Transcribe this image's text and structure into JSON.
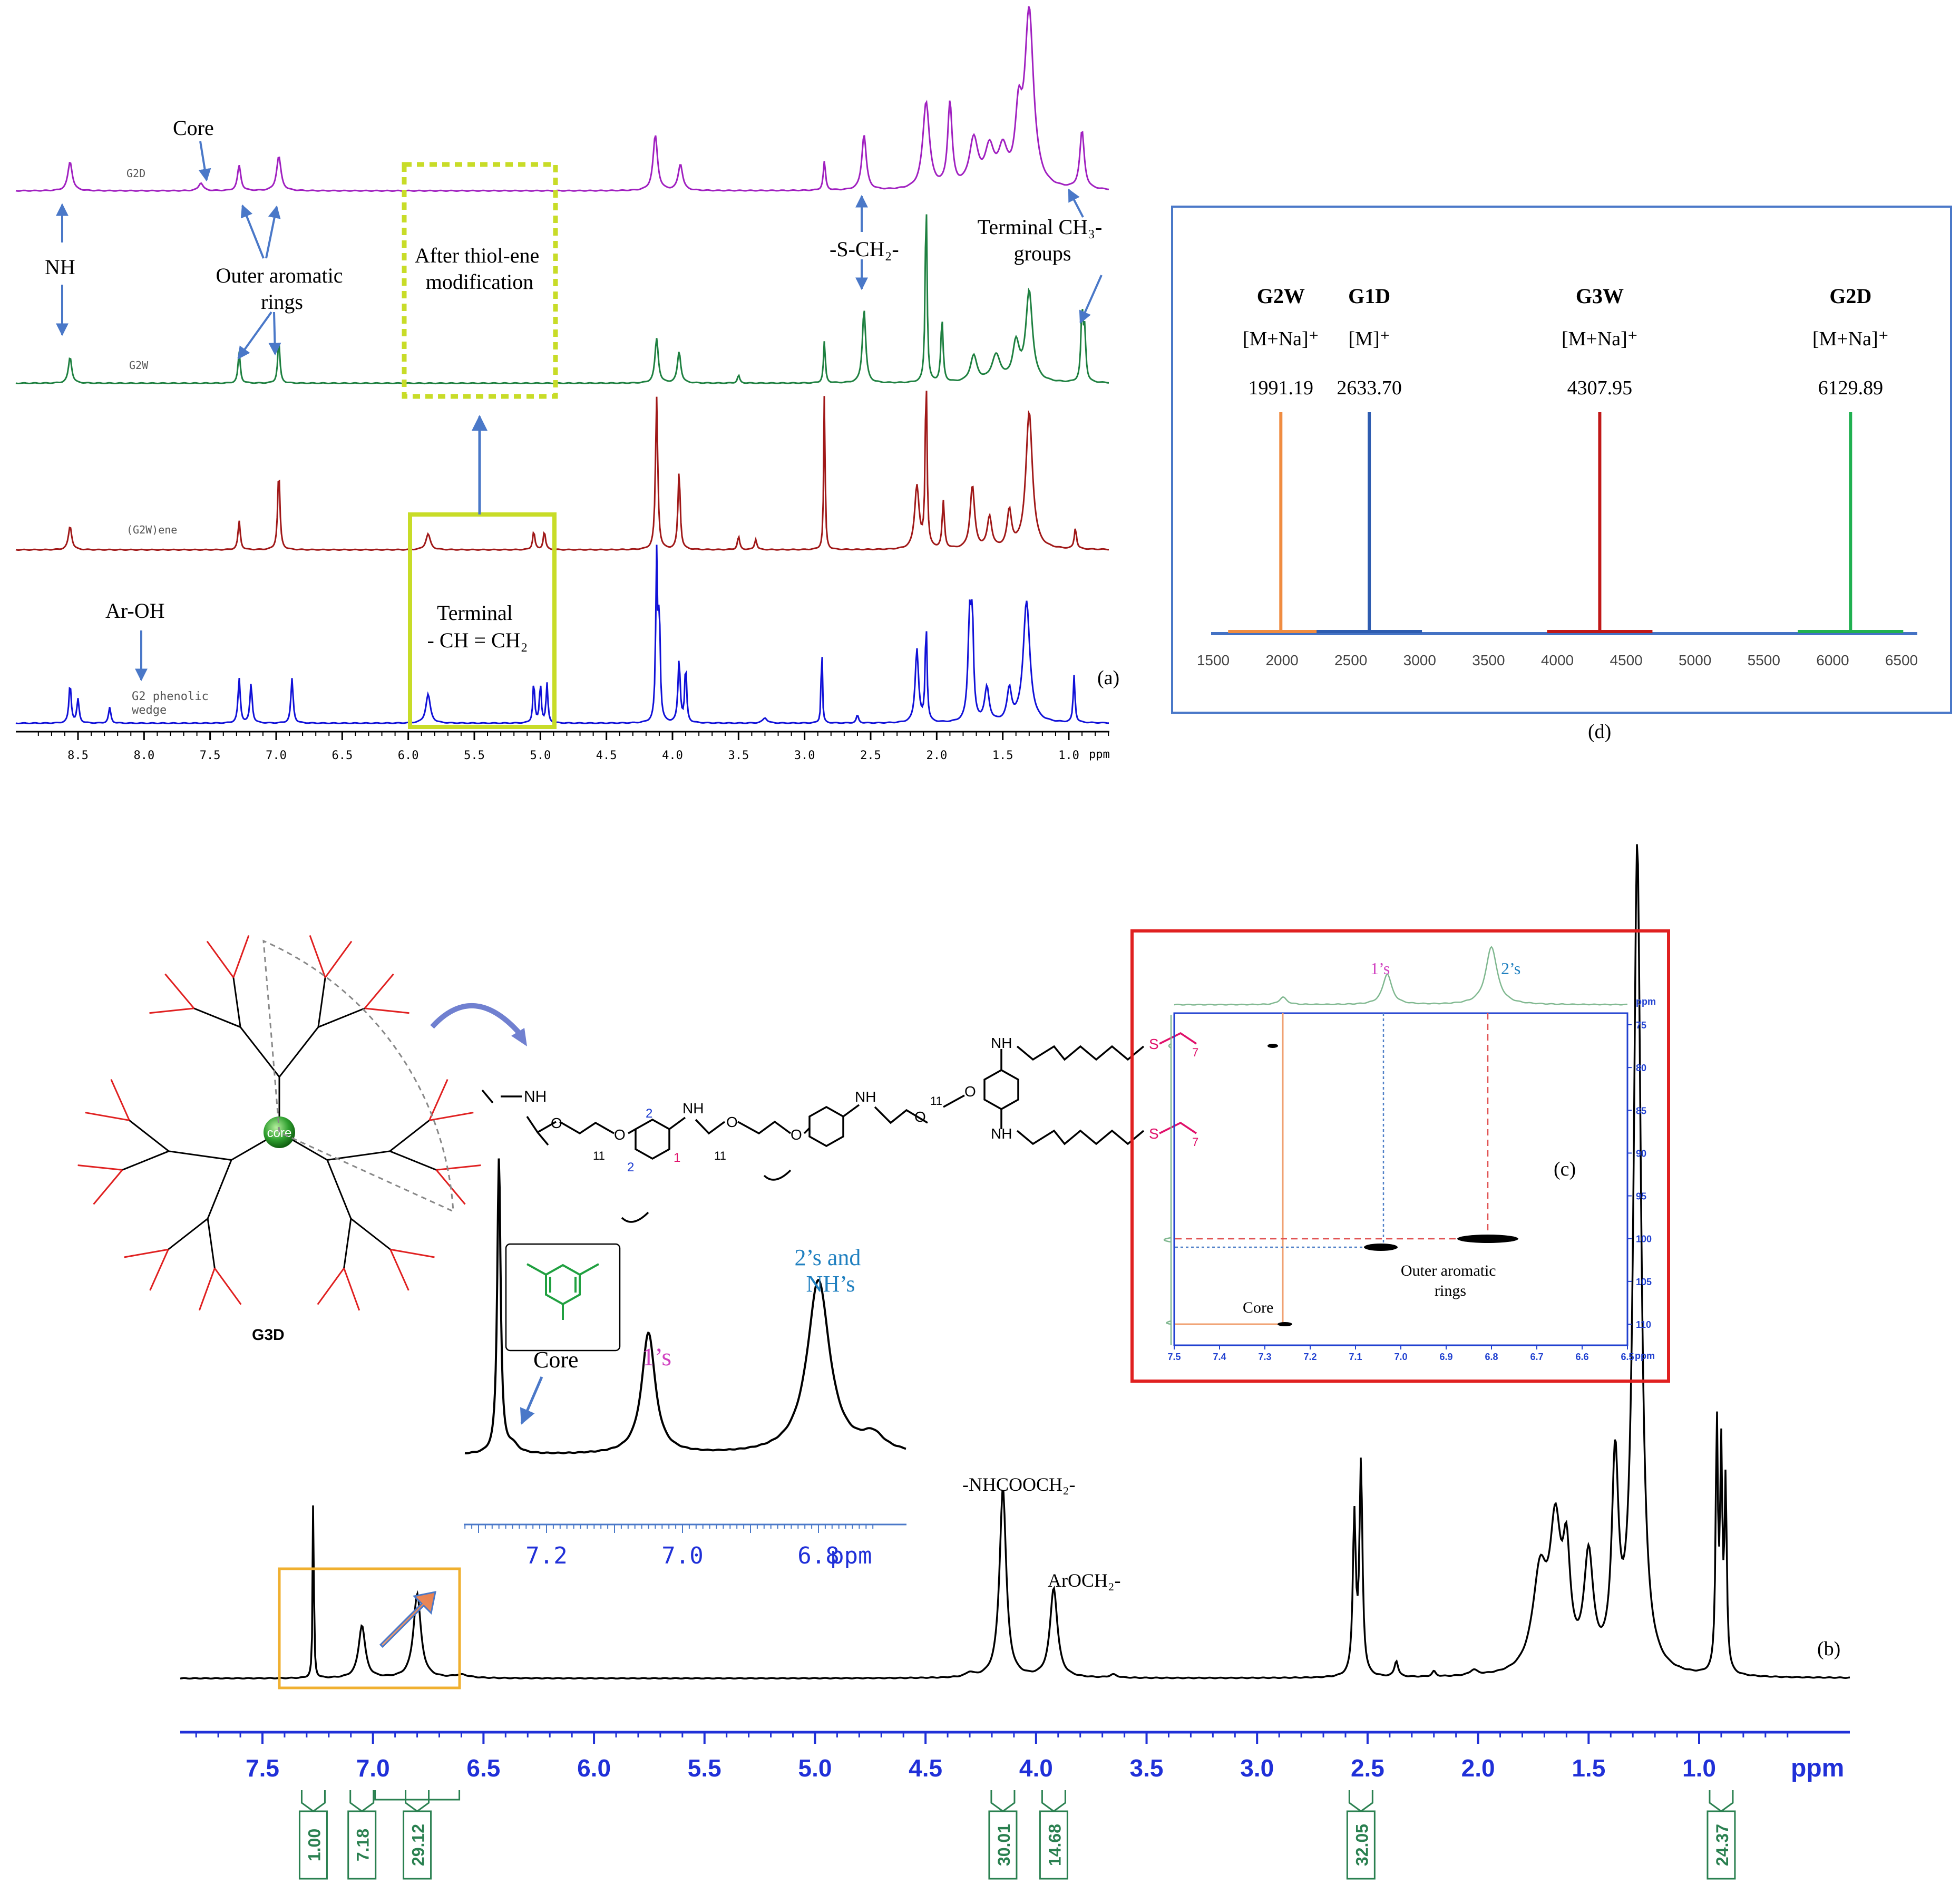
{
  "panel_labels": {
    "a": "(a)",
    "b": "(b)",
    "c": "(c)",
    "d": "(d)"
  },
  "panel_a": {
    "spectra": [
      {
        "label": "G2D",
        "color": "#a020c0"
      },
      {
        "label": "G2W",
        "color": "#1e8040"
      },
      {
        "label": "(G2W)ene",
        "color": "#a01818"
      },
      {
        "label": "G2 phenolic\nwedge",
        "color": "#1010d8"
      }
    ],
    "axis_ticks": [
      "8.5",
      "8.0",
      "7.5",
      "7.0",
      "6.5",
      "6.0",
      "5.5",
      "5.0",
      "4.5",
      "4.0",
      "3.5",
      "3.0",
      "2.5",
      "2.0",
      "1.5",
      "1.0"
    ],
    "axis_unit": "ppm",
    "annotations": {
      "core": "Core",
      "nh": "NH",
      "outer_aromatic": "Outer aromatic\nrings",
      "after_thiol": "After thiol-ene\nmodification",
      "s_ch2": "-S-CH₂-",
      "terminal_ch3": "Terminal CH₃-\ngroups",
      "ar_oh": "Ar-OH",
      "terminal_vinyl": "Terminal\n- CH = CH₂"
    },
    "highlight_color": "#c8dc28"
  },
  "chart_data": [
    {
      "type": "bar",
      "panel": "d",
      "categories": [
        "G2W",
        "G1D",
        "G3W",
        "G2D"
      ],
      "ion_labels": [
        "[M+Na]⁺",
        "[M]⁺",
        "[M+Na]⁺",
        "[M+Na]⁺"
      ],
      "values": [
        1991.19,
        2633.7,
        4307.95,
        6129.89
      ],
      "value_labels": [
        "1991.19",
        "2633.70",
        "4307.95",
        "6129.89"
      ],
      "colors": [
        "#f08c40",
        "#2e5cb0",
        "#c01818",
        "#20b050"
      ],
      "x_ticks": [
        "1500",
        "2000",
        "2500",
        "3000",
        "3500",
        "4000",
        "4500",
        "5000",
        "5500",
        "6000",
        "6500"
      ],
      "xlim": [
        1500,
        6500
      ]
    },
    {
      "type": "line",
      "panel": "b",
      "x_ticks": [
        "7.5",
        "7.0",
        "6.5",
        "6.0",
        "5.5",
        "5.0",
        "4.5",
        "4.0",
        "3.5",
        "3.0",
        "2.5",
        "2.0",
        "1.5",
        "1.0"
      ],
      "axis_unit": "ppm",
      "xlim": [
        7.85,
        0.7
      ],
      "peak_labels": {
        "nhcooch2": "-NHCOOCH₂-",
        "aroch2": "ArOCH₂-"
      },
      "integrals": [
        {
          "ppm": 7.27,
          "value": "1.00"
        },
        {
          "ppm": 7.05,
          "value": "7.18"
        },
        {
          "ppm": 6.8,
          "value": "29.12"
        },
        {
          "ppm": 4.15,
          "value": "30.01"
        },
        {
          "ppm": 3.92,
          "value": "14.68"
        },
        {
          "ppm": 2.53,
          "value": "32.05"
        },
        {
          "ppm": 0.9,
          "value": "24.37"
        }
      ]
    },
    {
      "type": "line",
      "panel": "b-inset",
      "x_ticks": [
        "7.2",
        "7.0",
        "6.8"
      ],
      "axis_unit": "ppm",
      "labels": {
        "core": "Core",
        "ones": "1’s",
        "twos": "2’s and\nNH’s"
      }
    },
    {
      "type": "heatmap",
      "panel": "c",
      "x_ticks": [
        "7.5",
        "7.4",
        "7.3",
        "7.2",
        "7.1",
        "7.0",
        "6.9",
        "6.8",
        "6.7",
        "6.6",
        "6.5"
      ],
      "y_ticks": [
        "75",
        "80",
        "85",
        "90",
        "95",
        "100",
        "105",
        "110"
      ],
      "axis_unit": "ppm",
      "labels": {
        "ones": "1’s",
        "twos": "2’s",
        "outer": "Outer aromatic\nrings",
        "core": "Core"
      }
    }
  ],
  "structure": {
    "core_label": "core",
    "dendrimer_label": "G3D",
    "atom_labels": {
      "nh": "NH",
      "nh2": "N",
      "h": "H",
      "o": "O",
      "s": "S",
      "n11": "11",
      "n7": "7",
      "n1": "1",
      "n2": "2"
    }
  }
}
